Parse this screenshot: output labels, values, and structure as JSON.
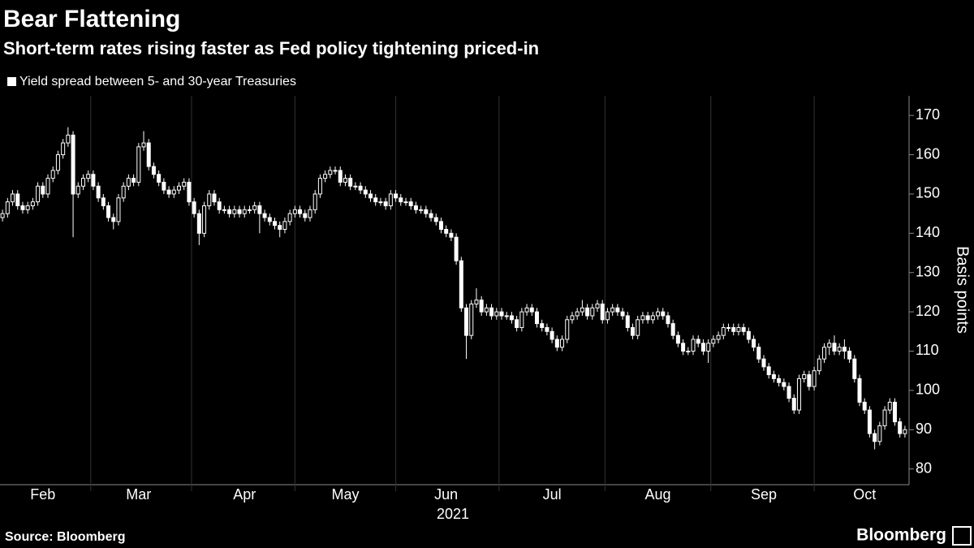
{
  "chart_data": {
    "type": "candlestick",
    "title": "Bear Flattening",
    "subtitle": "Short-term rates rising faster as Fed policy tightening priced-in",
    "ylabel": "Basis points",
    "xlabel": "2021",
    "source": "Source: Bloomberg",
    "brand": "Bloomberg",
    "ylim": [
      76,
      175
    ],
    "yticks": [
      80,
      90,
      100,
      110,
      120,
      130,
      140,
      150,
      160,
      170
    ],
    "xlim": [
      -0.5,
      179.5
    ],
    "xticks": [
      {
        "value": 8,
        "label": "Feb"
      },
      {
        "value": 27,
        "label": "Mar"
      },
      {
        "value": 48,
        "label": "Apr"
      },
      {
        "value": 68,
        "label": "May"
      },
      {
        "value": 88,
        "label": "Jun"
      },
      {
        "value": 109,
        "label": "Jul"
      },
      {
        "value": 130,
        "label": "Aug"
      },
      {
        "value": 151,
        "label": "Sep"
      },
      {
        "value": 171,
        "label": "Oct"
      }
    ],
    "series": [
      {
        "name": "Yield spread between 5- and 30-year Treasuries",
        "color": "#ffffff",
        "open": [
          144,
          145,
          148,
          150,
          147,
          146,
          147,
          148,
          152,
          150,
          154,
          156,
          160,
          163,
          165,
          150,
          152,
          154,
          155,
          152,
          149,
          147,
          144,
          143,
          149,
          152,
          154,
          153,
          162,
          163,
          157,
          155,
          153,
          151,
          150,
          151,
          152,
          153,
          148,
          145,
          140,
          147,
          150,
          148,
          146,
          146,
          145,
          146,
          145,
          146,
          146,
          147,
          145,
          144,
          143,
          142,
          141,
          143,
          145,
          146,
          145,
          144,
          146,
          150,
          154,
          155,
          156,
          156,
          153,
          154,
          152,
          152,
          151,
          150,
          149,
          148,
          148,
          147,
          150,
          149,
          148,
          148,
          147,
          146,
          146,
          145,
          144,
          143,
          141,
          140,
          139,
          133,
          121,
          114,
          122,
          123,
          120,
          121,
          119,
          120,
          119,
          119,
          118,
          116,
          120,
          121,
          120,
          117,
          116,
          115,
          113,
          111,
          113,
          118,
          119,
          120,
          121,
          119,
          121,
          122,
          118,
          120,
          121,
          120,
          119,
          116,
          114,
          118,
          119,
          118,
          119,
          120,
          119,
          117,
          114,
          112,
          110,
          110,
          113,
          112,
          110,
          112,
          113,
          114,
          116,
          116,
          115,
          116,
          115,
          113,
          111,
          108,
          106,
          104,
          103,
          102,
          101,
          98,
          95,
          103,
          104,
          101,
          105,
          108,
          111,
          112,
          110,
          111,
          110,
          108,
          103,
          97,
          95,
          89,
          87,
          91,
          95,
          97,
          92,
          89
        ],
        "high": [
          146,
          149,
          151,
          151,
          148,
          148,
          149,
          153,
          153,
          155,
          157,
          161,
          164,
          167,
          166,
          153,
          155,
          156,
          156,
          153,
          150,
          148,
          145,
          150,
          153,
          155,
          155,
          163,
          166,
          164,
          158,
          156,
          154,
          152,
          152,
          153,
          154,
          154,
          149,
          146,
          148,
          151,
          151,
          149,
          147,
          147,
          147,
          147,
          147,
          147,
          148,
          148,
          146,
          145,
          144,
          143,
          144,
          146,
          147,
          147,
          146,
          147,
          151,
          155,
          156,
          157,
          157,
          157,
          155,
          155,
          153,
          153,
          152,
          151,
          150,
          149,
          149,
          151,
          151,
          150,
          149,
          149,
          148,
          147,
          147,
          146,
          145,
          144,
          142,
          141,
          140,
          134,
          122,
          123,
          126,
          124,
          122,
          122,
          121,
          121,
          120,
          120,
          119,
          121,
          122,
          122,
          121,
          118,
          117,
          116,
          114,
          114,
          119,
          120,
          121,
          123,
          122,
          122,
          123,
          123,
          121,
          122,
          122,
          121,
          120,
          117,
          119,
          120,
          120,
          120,
          121,
          121,
          120,
          118,
          115,
          113,
          111,
          114,
          114,
          113,
          113,
          114,
          115,
          117,
          117,
          117,
          117,
          117,
          116,
          114,
          112,
          109,
          107,
          105,
          104,
          103,
          102,
          99,
          104,
          105,
          105,
          106,
          109,
          112,
          113,
          114,
          112,
          113,
          111,
          109,
          104,
          98,
          96,
          90,
          92,
          96,
          98,
          98,
          93,
          91
        ],
        "low": [
          143,
          144,
          147,
          146,
          145,
          145,
          146,
          147,
          149,
          149,
          153,
          155,
          159,
          162,
          139,
          149,
          151,
          153,
          151,
          148,
          146,
          143,
          141,
          142,
          148,
          151,
          152,
          152,
          161,
          156,
          154,
          152,
          150,
          149,
          149,
          150,
          151,
          147,
          144,
          137,
          139,
          146,
          147,
          145,
          145,
          144,
          144,
          144,
          144,
          145,
          145,
          140,
          143,
          142,
          141,
          139,
          140,
          142,
          144,
          144,
          143,
          143,
          145,
          149,
          153,
          154,
          155,
          152,
          152,
          151,
          151,
          150,
          149,
          148,
          147,
          147,
          146,
          146,
          148,
          147,
          147,
          146,
          145,
          145,
          144,
          143,
          142,
          140,
          139,
          138,
          132,
          120,
          108,
          113,
          121,
          119,
          119,
          118,
          118,
          118,
          118,
          117,
          115,
          115,
          119,
          119,
          116,
          115,
          114,
          112,
          110,
          110,
          112,
          117,
          118,
          119,
          118,
          118,
          120,
          117,
          117,
          119,
          119,
          118,
          115,
          113,
          113,
          117,
          117,
          117,
          118,
          118,
          116,
          113,
          111,
          109,
          109,
          109,
          111,
          109,
          107,
          111,
          112,
          113,
          115,
          114,
          114,
          114,
          112,
          110,
          107,
          105,
          103,
          102,
          101,
          100,
          97,
          94,
          94,
          102,
          100,
          100,
          104,
          107,
          109,
          109,
          109,
          108,
          107,
          102,
          96,
          94,
          88,
          85,
          86,
          90,
          94,
          91,
          88,
          88
        ],
        "close": [
          145,
          148,
          150,
          147,
          146,
          147,
          148,
          152,
          150,
          154,
          156,
          160,
          163,
          165,
          150,
          152,
          154,
          155,
          152,
          149,
          147,
          144,
          143,
          149,
          152,
          154,
          153,
          162,
          163,
          157,
          155,
          153,
          151,
          150,
          151,
          152,
          153,
          148,
          145,
          140,
          147,
          150,
          148,
          146,
          146,
          145,
          146,
          145,
          146,
          146,
          147,
          145,
          144,
          143,
          142,
          141,
          143,
          145,
          146,
          145,
          144,
          146,
          150,
          154,
          155,
          156,
          156,
          153,
          154,
          152,
          152,
          151,
          150,
          149,
          148,
          148,
          147,
          150,
          149,
          148,
          148,
          147,
          146,
          146,
          145,
          144,
          143,
          141,
          140,
          139,
          133,
          121,
          114,
          122,
          123,
          120,
          121,
          119,
          120,
          119,
          119,
          118,
          116,
          120,
          121,
          120,
          117,
          116,
          115,
          113,
          111,
          113,
          118,
          119,
          120,
          121,
          119,
          121,
          122,
          118,
          120,
          121,
          120,
          119,
          116,
          114,
          118,
          119,
          118,
          119,
          120,
          119,
          117,
          114,
          112,
          110,
          110,
          113,
          112,
          110,
          112,
          113,
          114,
          116,
          116,
          115,
          116,
          115,
          113,
          111,
          108,
          106,
          104,
          103,
          102,
          101,
          98,
          95,
          103,
          104,
          101,
          105,
          108,
          111,
          112,
          110,
          111,
          110,
          108,
          103,
          97,
          95,
          89,
          87,
          91,
          95,
          97,
          92,
          89,
          90
        ]
      }
    ]
  }
}
